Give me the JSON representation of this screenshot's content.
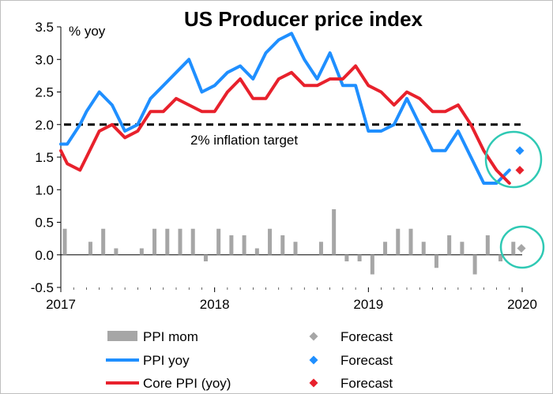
{
  "chart_data": {
    "type": "line",
    "title": "US Producer price index",
    "ylabel_unit": "% yoy",
    "ylim": [
      -0.5,
      3.5
    ],
    "yticks": [
      "3.5",
      "3.0",
      "2.5",
      "2.0",
      "1.5",
      "1.0",
      "0.5",
      "0.0",
      "-0.5"
    ],
    "ytick_values": [
      3.5,
      3.0,
      2.5,
      2.0,
      1.5,
      1.0,
      0.5,
      0.0,
      -0.5
    ],
    "xlim": [
      2017.0,
      2020.0
    ],
    "xticks": [
      "2017",
      "2018",
      "2019",
      "2020"
    ],
    "xtick_values": [
      2017,
      2018,
      2019,
      2020
    ],
    "reference_line": {
      "value": 2.0,
      "label": "2% inflation target",
      "style": "dashed",
      "color": "#000000"
    },
    "series": [
      {
        "name": "PPI mom",
        "kind": "bar",
        "color": "#a6a6a6",
        "x": [
          2017.0,
          2017.0833,
          2017.1667,
          2017.25,
          2017.3333,
          2017.4167,
          2017.5,
          2017.5833,
          2017.6667,
          2017.75,
          2017.8333,
          2017.9167,
          2018.0,
          2018.0833,
          2018.1667,
          2018.25,
          2018.3333,
          2018.4167,
          2018.5,
          2018.5833,
          2018.6667,
          2018.75,
          2018.8333,
          2018.9167,
          2019.0,
          2019.0833,
          2019.1667,
          2019.25,
          2019.3333,
          2019.4167,
          2019.5,
          2019.5833,
          2019.6667,
          2019.75,
          2019.8333,
          2019.9167
        ],
        "values": [
          0.4,
          0.0,
          0.2,
          0.4,
          0.1,
          0.0,
          0.1,
          0.4,
          0.4,
          0.4,
          0.4,
          -0.1,
          0.4,
          0.3,
          0.3,
          0.1,
          0.4,
          0.3,
          0.2,
          0.0,
          0.2,
          0.7,
          -0.1,
          -0.1,
          -0.3,
          0.2,
          0.4,
          0.4,
          0.2,
          -0.2,
          0.3,
          0.2,
          -0.3,
          0.3,
          -0.1,
          0.2
        ]
      },
      {
        "name": "PPI yoy",
        "kind": "line",
        "color": "#1f8fff",
        "x": [
          2017.0,
          2017.0417,
          2017.125,
          2017.1667,
          2017.25,
          2017.3333,
          2017.4167,
          2017.5,
          2017.5833,
          2017.6667,
          2017.75,
          2017.8333,
          2017.9167,
          2018.0,
          2018.0833,
          2018.1667,
          2018.25,
          2018.3333,
          2018.4167,
          2018.5,
          2018.5833,
          2018.6667,
          2018.75,
          2018.8333,
          2018.9167,
          2019.0,
          2019.0833,
          2019.1667,
          2019.25,
          2019.3333,
          2019.4167,
          2019.5,
          2019.5833,
          2019.6667,
          2019.75,
          2019.8333,
          2019.9167
        ],
        "values": [
          1.7,
          1.7,
          2.0,
          2.2,
          2.5,
          2.3,
          1.9,
          2.0,
          2.4,
          2.6,
          2.8,
          3.0,
          2.5,
          2.6,
          2.8,
          2.9,
          2.7,
          3.1,
          3.3,
          3.4,
          3.0,
          2.7,
          3.1,
          2.6,
          2.6,
          1.9,
          1.9,
          2.0,
          2.4,
          2.0,
          1.6,
          1.6,
          1.9,
          1.5,
          1.1,
          1.1,
          1.3
        ]
      },
      {
        "name": "Core PPI (yoy)",
        "kind": "line",
        "color": "#e8212c",
        "x": [
          2017.0,
          2017.0417,
          2017.125,
          2017.1667,
          2017.25,
          2017.3333,
          2017.4167,
          2017.5,
          2017.5833,
          2017.6667,
          2017.75,
          2017.8333,
          2017.9167,
          2018.0,
          2018.0833,
          2018.1667,
          2018.25,
          2018.3333,
          2018.4167,
          2018.5,
          2018.5833,
          2018.6667,
          2018.75,
          2018.8333,
          2018.9167,
          2019.0,
          2019.0833,
          2019.1667,
          2019.25,
          2019.3333,
          2019.4167,
          2019.5,
          2019.5833,
          2019.6667,
          2019.75,
          2019.8333,
          2019.9167
        ],
        "values": [
          1.6,
          1.4,
          1.3,
          1.5,
          1.9,
          2.0,
          1.8,
          1.9,
          2.2,
          2.2,
          2.4,
          2.3,
          2.2,
          2.2,
          2.5,
          2.7,
          2.4,
          2.4,
          2.7,
          2.8,
          2.6,
          2.6,
          2.7,
          2.7,
          2.9,
          2.6,
          2.5,
          2.3,
          2.5,
          2.4,
          2.2,
          2.2,
          2.3,
          2.0,
          1.6,
          1.3,
          1.1
        ]
      }
    ],
    "forecasts": [
      {
        "of": "PPI mom",
        "name": "Forecast",
        "x": 2020.0,
        "value": 0.1,
        "color": "#a6a6a6"
      },
      {
        "of": "PPI yoy",
        "name": "Forecast",
        "x": 2020.0,
        "value": 1.6,
        "color": "#1f8fff"
      },
      {
        "of": "Core PPI (yoy)",
        "name": "Forecast",
        "x": 2020.0,
        "value": 1.3,
        "color": "#e8212c"
      }
    ],
    "highlight_color": "#2fc9b4",
    "grid": false,
    "legend": {
      "placement": "bottom",
      "entries": [
        {
          "label": "PPI mom",
          "symbol": "bar",
          "color": "#a6a6a6",
          "forecast_label": "Forecast",
          "forecast_color": "#a6a6a6"
        },
        {
          "label": "PPI yoy",
          "symbol": "line",
          "color": "#1f8fff",
          "forecast_label": "Forecast",
          "forecast_color": "#1f8fff"
        },
        {
          "label": "Core PPI (yoy)",
          "symbol": "line",
          "color": "#e8212c",
          "forecast_label": "Forecast",
          "forecast_color": "#e8212c"
        }
      ]
    }
  }
}
